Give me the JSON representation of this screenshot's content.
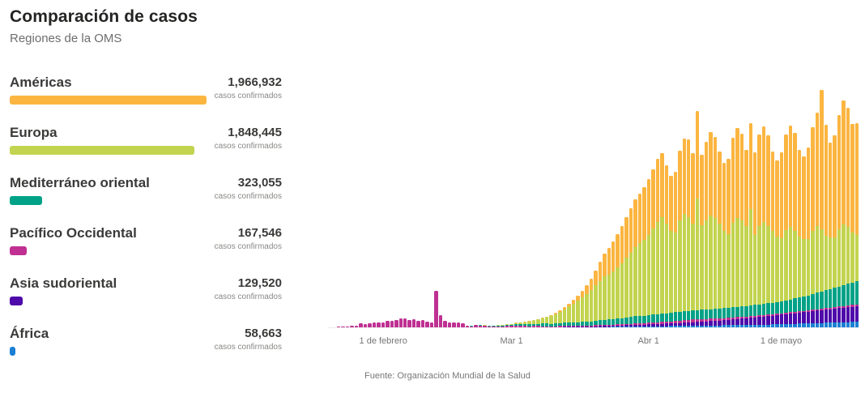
{
  "header": {
    "title": "Comparación de casos",
    "subtitle": "Regiones de la OMS"
  },
  "legend": {
    "confirmed_label": "casos confirmados",
    "items": [
      {
        "name": "Américas",
        "value": "1,966,932",
        "cases": 1966932,
        "color": "#FBB540"
      },
      {
        "name": "Europa",
        "value": "1,848,445",
        "cases": 1848445,
        "color": "#C2D44F"
      },
      {
        "name": "Mediterráneo oriental",
        "value": "323,055",
        "cases": 323055,
        "color": "#00A287"
      },
      {
        "name": "Pacífico Occidental",
        "value": "167,546",
        "cases": 167546,
        "color": "#BF3092"
      },
      {
        "name": "Asia sudoriental",
        "value": "129,520",
        "cases": 129520,
        "color": "#4E0AAA"
      },
      {
        "name": "África",
        "value": "58,663",
        "cases": 58663,
        "color": "#1B7FD4"
      }
    ]
  },
  "chart_data": {
    "type": "bar",
    "stacked": true,
    "title": "Casos diarios confirmados por región de la OMS (estimado de la gráfica)",
    "xlabel": "",
    "ylabel": "",
    "grid": false,
    "legend_position": "left-panel",
    "x_start": "20 de enero",
    "x_interval": "1 día",
    "num_days": 120,
    "ylim": [
      0,
      102000
    ],
    "x_tick_labels": [
      {
        "label": "1 de febrero",
        "day_index": 12
      },
      {
        "label": "Mar 1",
        "day_index": 41
      },
      {
        "label": "Abr 1",
        "day_index": 72
      },
      {
        "label": "1 de mayo",
        "day_index": 102
      }
    ],
    "stack_order": "bottom-to-top",
    "series": [
      {
        "name": "África",
        "color": "#1B7FD4",
        "values": [
          0,
          0,
          0,
          0,
          0,
          0,
          0,
          0,
          0,
          0,
          0,
          0,
          0,
          0,
          0,
          0,
          0,
          0,
          0,
          0,
          0,
          0,
          0,
          0,
          0,
          0,
          1,
          0,
          0,
          0,
          0,
          0,
          0,
          0,
          0,
          0,
          0,
          1,
          1,
          1,
          2,
          2,
          3,
          4,
          5,
          6,
          8,
          10,
          13,
          16,
          20,
          25,
          30,
          36,
          43,
          50,
          60,
          70,
          82,
          95,
          110,
          126,
          143,
          161,
          180,
          200,
          221,
          243,
          266,
          290,
          315,
          341,
          370,
          400,
          430,
          460,
          490,
          520,
          550,
          580,
          610,
          640,
          670,
          700,
          730,
          760,
          790,
          820,
          850,
          880,
          910,
          940,
          970,
          1000,
          1030,
          1060,
          1090,
          1120,
          1150,
          1180,
          1210,
          1240,
          1300,
          1360,
          1420,
          1480,
          1540,
          1600,
          1660,
          1720,
          1780,
          1840,
          1900,
          1960,
          2020,
          2080,
          2140,
          2200,
          2260,
          2320
        ]
      },
      {
        "name": "Asia sudoriental",
        "color": "#4E0AAA",
        "values": [
          0,
          0,
          0,
          1,
          0,
          1,
          0,
          1,
          1,
          0,
          1,
          0,
          1,
          0,
          1,
          0,
          1,
          0,
          1,
          0,
          1,
          1,
          0,
          1,
          0,
          1,
          0,
          1,
          0,
          1,
          1,
          0,
          1,
          0,
          1,
          0,
          1,
          1,
          0,
          1,
          2,
          10,
          15,
          20,
          25,
          30,
          40,
          50,
          60,
          75,
          90,
          110,
          130,
          150,
          175,
          200,
          230,
          260,
          300,
          340,
          380,
          420,
          460,
          500,
          540,
          580,
          620,
          660,
          700,
          740,
          780,
          820,
          860,
          900,
          950,
          1000,
          1060,
          1120,
          1180,
          1250,
          1320,
          1400,
          1480,
          1560,
          1650,
          1740,
          1830,
          1930,
          2030,
          2140,
          2250,
          2370,
          2490,
          2620,
          2750,
          2890,
          3030,
          3180,
          3340,
          3500,
          3670,
          3850,
          4000,
          4150,
          4300,
          4450,
          4600,
          4750,
          4900,
          5050,
          5200,
          5350,
          5500,
          5650,
          5800,
          5950,
          6100,
          6250,
          6400,
          6550
        ]
      },
      {
        "name": "Pacífico Occidental",
        "color": "#BF3092",
        "values": [
          150,
          150,
          250,
          300,
          450,
          700,
          780,
          1750,
          1470,
          1740,
          1980,
          2100,
          2130,
          2600,
          2830,
          3230,
          3890,
          3700,
          3150,
          3400,
          2650,
          2980,
          2550,
          2030,
          15150,
          5090,
          2620,
          2150,
          2000,
          1900,
          1750,
          750,
          500,
          890,
          820,
          650,
          510,
          410,
          440,
          430,
          580,
          580,
          690,
          600,
          510,
          440,
          510,
          480,
          400,
          380,
          330,
          370,
          390,
          420,
          430,
          440,
          340,
          370,
          390,
          420,
          480,
          500,
          520,
          480,
          430,
          450,
          480,
          520,
          560,
          590,
          560,
          540,
          680,
          720,
          760,
          800,
          840,
          900,
          950,
          1000,
          1050,
          1100,
          1150,
          1100,
          1050,
          1000,
          980,
          950,
          920,
          900,
          880,
          850,
          820,
          800,
          780,
          760,
          740,
          720,
          700,
          680,
          660,
          640,
          620,
          600,
          590,
          580,
          570,
          560,
          560,
          580,
          600,
          620,
          650,
          680,
          700,
          720,
          750,
          780,
          800,
          820
        ]
      },
      {
        "name": "Mediterráneo oriental",
        "color": "#00A287",
        "values": [
          0,
          0,
          0,
          0,
          0,
          0,
          0,
          0,
          0,
          0,
          0,
          0,
          0,
          0,
          0,
          0,
          0,
          0,
          0,
          1,
          0,
          0,
          0,
          0,
          0,
          1,
          0,
          0,
          0,
          0,
          2,
          5,
          20,
          30,
          50,
          80,
          120,
          160,
          210,
          260,
          380,
          420,
          500,
          590,
          680,
          780,
          890,
          1000,
          1100,
          1150,
          1050,
          1100,
          1200,
          1300,
          1400,
          1450,
          1500,
          1550,
          1600,
          1700,
          1800,
          1900,
          2000,
          2100,
          2250,
          2400,
          2550,
          2700,
          2850,
          3000,
          3100,
          3200,
          3300,
          3400,
          3450,
          3500,
          3550,
          3600,
          3650,
          3700,
          3700,
          3750,
          3800,
          3850,
          3900,
          3950,
          4000,
          4050,
          4100,
          4150,
          4200,
          4250,
          4300,
          4350,
          4400,
          4450,
          4500,
          4550,
          4600,
          4700,
          4800,
          4900,
          5000,
          5200,
          5400,
          5600,
          5800,
          6000,
          6300,
          6600,
          6900,
          7200,
          7500,
          7800,
          8100,
          8400,
          8700,
          9000,
          9300,
          9600
        ]
      },
      {
        "name": "Europa",
        "color": "#C2D44F",
        "values": [
          0,
          0,
          0,
          0,
          1,
          2,
          1,
          2,
          1,
          2,
          3,
          2,
          2,
          3,
          2,
          3,
          2,
          3,
          2,
          3,
          2,
          3,
          2,
          3,
          2,
          3,
          2,
          3,
          2,
          3,
          2,
          3,
          20,
          50,
          90,
          130,
          180,
          230,
          280,
          330,
          400,
          500,
          650,
          800,
          1000,
          1250,
          1500,
          1800,
          2200,
          2700,
          3300,
          4000,
          4800,
          5700,
          6700,
          7800,
          9000,
          10300,
          11700,
          13200,
          14800,
          16500,
          18200,
          19000,
          20000,
          21500,
          23000,
          25000,
          27000,
          29000,
          30500,
          32000,
          33500,
          36000,
          38500,
          40500,
          37500,
          34500,
          33500,
          38500,
          41000,
          39500,
          36500,
          47000,
          35500,
          37500,
          39500,
          38000,
          35500,
          32500,
          31000,
          35500,
          37500,
          36000,
          33500,
          40500,
          29500,
          33000,
          34500,
          32500,
          30000,
          27500,
          26500,
          29500,
          30500,
          28500,
          25500,
          24000,
          23500,
          26500,
          28000,
          26000,
          23000,
          21500,
          21000,
          24000,
          25500,
          24000,
          21000,
          19500
        ]
      },
      {
        "name": "Américas",
        "color": "#FBB540",
        "values": [
          0,
          0,
          1,
          1,
          2,
          1,
          2,
          1,
          2,
          3,
          3,
          2,
          2,
          1,
          2,
          1,
          2,
          1,
          2,
          1,
          2,
          1,
          2,
          1,
          2,
          1,
          2,
          1,
          2,
          1,
          2,
          3,
          3,
          4,
          5,
          6,
          8,
          10,
          12,
          15,
          18,
          25,
          35,
          50,
          70,
          90,
          120,
          160,
          210,
          270,
          350,
          450,
          600,
          800,
          1100,
          1500,
          2000,
          2700,
          3600,
          4800,
          6300,
          8000,
          9500,
          11000,
          12500,
          14000,
          15500,
          17000,
          18500,
          20000,
          21000,
          22000,
          23500,
          25000,
          26500,
          27000,
          24500,
          23000,
          25500,
          29000,
          31500,
          32500,
          29500,
          36500,
          29500,
          33000,
          35000,
          34000,
          30500,
          28500,
          31500,
          35500,
          37500,
          36500,
          32000,
          36000,
          34500,
          38500,
          40000,
          38000,
          33500,
          32000,
          36000,
          40000,
          42500,
          41000,
          36500,
          35000,
          38500,
          43500,
          47500,
          58500,
          46500,
          40000,
          43000,
          48000,
          52000,
          50000,
          45500,
          47000
        ]
      }
    ]
  },
  "footer": {
    "source": "Fuente: Organización Mundial de la Salud"
  }
}
